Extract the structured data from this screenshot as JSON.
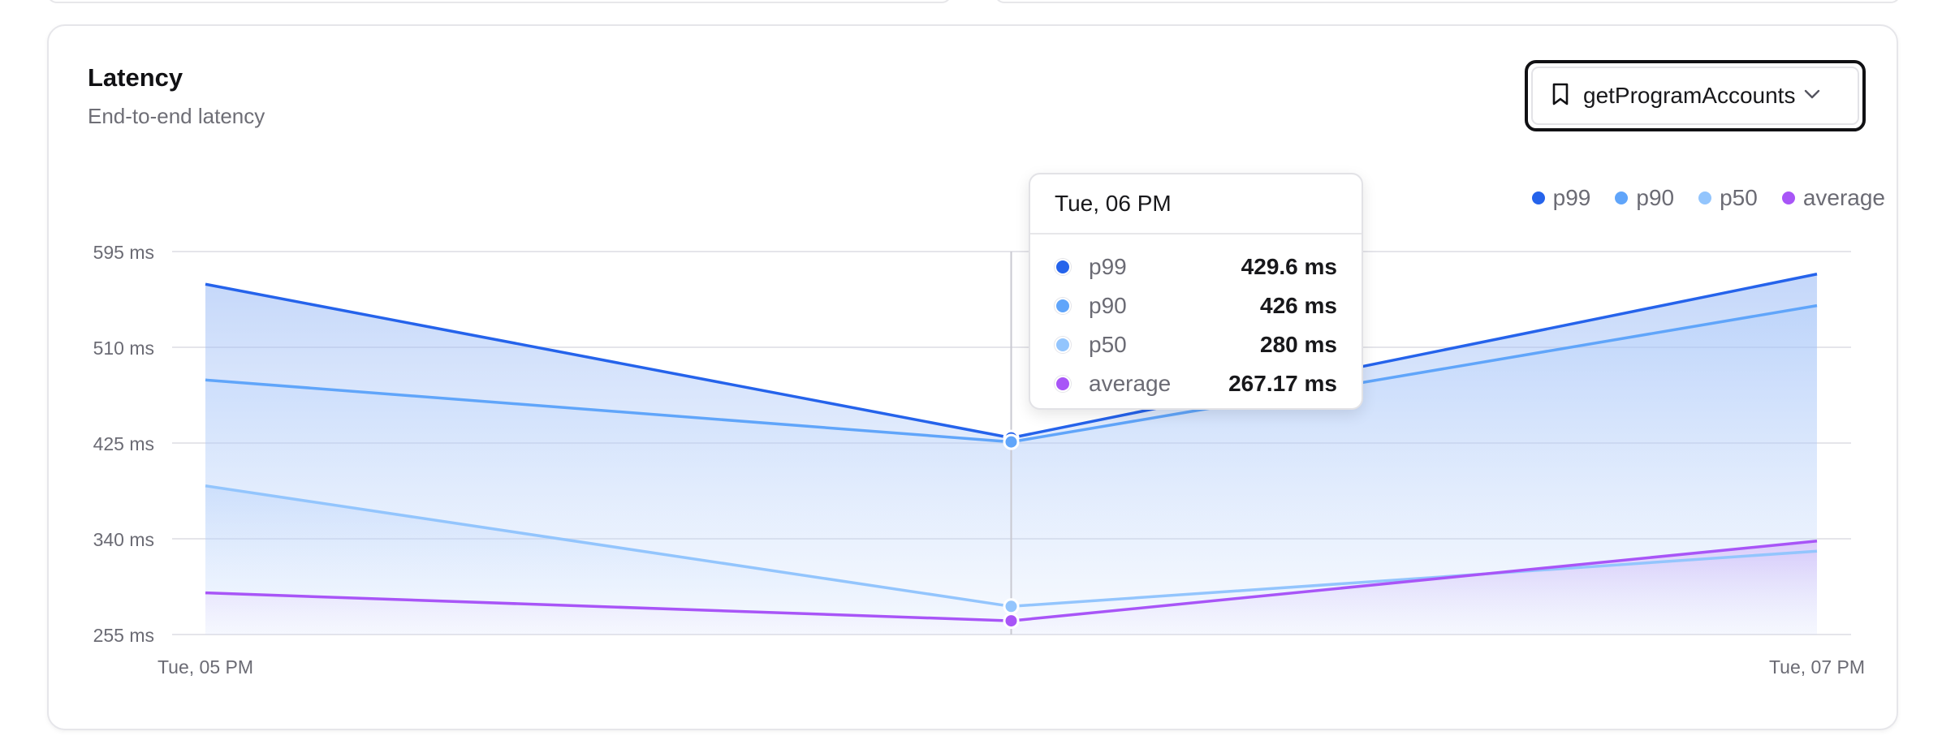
{
  "card": {
    "title": "Latency",
    "subtitle": "End-to-end latency"
  },
  "method_select": {
    "value": "getProgramAccounts",
    "icon": "bookmark-icon",
    "chevron": "chevron-down-icon"
  },
  "tooltip": {
    "title": "Tue, 06 PM",
    "rows": [
      {
        "name": "p99",
        "value": "429.6 ms"
      },
      {
        "name": "p90",
        "value": "426 ms"
      },
      {
        "name": "p50",
        "value": "280 ms"
      },
      {
        "name": "average",
        "value": "267.17 ms"
      }
    ]
  },
  "chart_data": {
    "type": "area",
    "categories": [
      "Tue, 05 PM",
      "Tue, 06 PM",
      "Tue, 07 PM"
    ],
    "x_tick_labels": [
      "Tue, 05 PM",
      "Tue, 07 PM"
    ],
    "y_tick_labels": [
      "595 ms",
      "510 ms",
      "425 ms",
      "340 ms",
      "255 ms"
    ],
    "y_ticks": [
      595,
      510,
      425,
      340,
      255
    ],
    "ylim": [
      255,
      595
    ],
    "grid": true,
    "legend_position": "top-right",
    "highlighted_category": "Tue, 06 PM",
    "series": [
      {
        "name": "p99",
        "values": [
          566,
          429.6,
          575
        ],
        "color": "#2563eb"
      },
      {
        "name": "p90",
        "values": [
          481,
          426,
          547
        ],
        "color": "#60a5fa"
      },
      {
        "name": "p50",
        "values": [
          387,
          280,
          329
        ],
        "color": "#93c5fd"
      },
      {
        "name": "average",
        "values": [
          292,
          267.17,
          338
        ],
        "color": "#a855f7"
      }
    ]
  }
}
